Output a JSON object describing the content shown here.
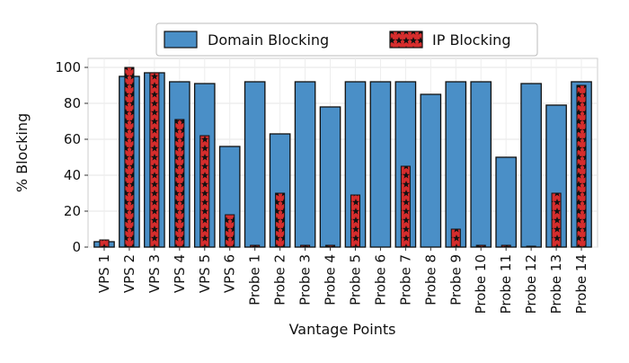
{
  "chart_data": {
    "type": "bar",
    "xlabel": "Vantage Points",
    "ylabel": "% Blocking",
    "ylim": [
      0,
      105
    ],
    "yticks": [
      0,
      20,
      40,
      60,
      80,
      100
    ],
    "grid": true,
    "legend_position": "top",
    "categories": [
      "VPS 1",
      "VPS 2",
      "VPS 3",
      "VPS 4",
      "VPS 5",
      "VPS 6",
      "Probe 1",
      "Probe 2",
      "Probe 3",
      "Probe 4",
      "Probe 5",
      "Probe 6",
      "Probe 7",
      "Probe 8",
      "Probe 9",
      "Probe 10",
      "Probe 11",
      "Probe 12",
      "Probe 13",
      "Probe 14"
    ],
    "series": [
      {
        "name": "Domain Blocking",
        "color": "#4a8fc7",
        "style": "wide-bar",
        "values": [
          3,
          95,
          97,
          92,
          91,
          56,
          92,
          63,
          92,
          78,
          92,
          92,
          92,
          85,
          92,
          92,
          50,
          91,
          79,
          92
        ]
      },
      {
        "name": "IP Blocking",
        "color": "#d62d2d",
        "style": "narrow-bar-star-hatch",
        "values": [
          4,
          100,
          97,
          71,
          62,
          18,
          1,
          30,
          1,
          1,
          29,
          0,
          45,
          0,
          10,
          1,
          1,
          0.5,
          30,
          90
        ]
      }
    ]
  }
}
